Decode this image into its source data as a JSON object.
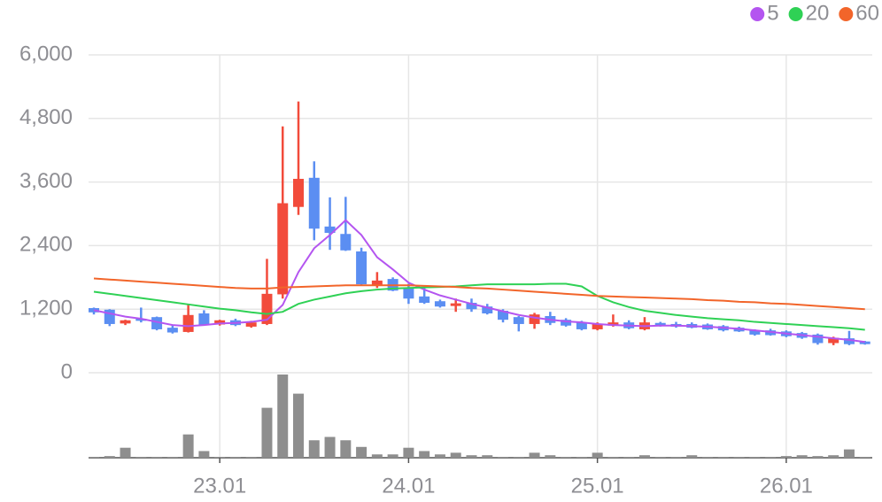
{
  "chart_data": {
    "type": "candlestick",
    "categories": [
      null,
      null,
      null,
      null,
      null,
      null,
      null,
      null,
      "23.01",
      null,
      null,
      null,
      null,
      null,
      null,
      null,
      null,
      null,
      null,
      null,
      "24.01",
      null,
      null,
      null,
      null,
      null,
      null,
      null,
      null,
      null,
      null,
      null,
      "25.01",
      null,
      null,
      null,
      null,
      null,
      null,
      null,
      null,
      null,
      null,
      null,
      "26.01",
      null,
      null,
      null,
      null,
      null
    ],
    "open": [
      1220,
      1190,
      930,
      1020,
      1050,
      850,
      770,
      1120,
      910,
      990,
      870,
      920,
      1480,
      3130,
      3680,
      2760,
      2620,
      2290,
      1650,
      1770,
      1590,
      1440,
      1350,
      1260,
      1320,
      1250,
      1170,
      1050,
      920,
      1070,
      1000,
      950,
      820,
      890,
      950,
      820,
      940,
      920,
      920,
      910,
      880,
      850,
      800,
      800,
      780,
      750,
      720,
      560,
      650,
      590
    ],
    "high": [
      1230,
      1200,
      1000,
      1230,
      1060,
      900,
      1300,
      1180,
      1000,
      1020,
      980,
      2150,
      4650,
      5120,
      3990,
      3310,
      3320,
      2360,
      1900,
      1800,
      1680,
      1600,
      1380,
      1400,
      1400,
      1300,
      1200,
      1070,
      1130,
      1150,
      1030,
      980,
      950,
      1100,
      990,
      1050,
      960,
      960,
      950,
      930,
      900,
      870,
      820,
      830,
      800,
      770,
      740,
      680,
      790,
      600
    ],
    "low": [
      1100,
      880,
      900,
      950,
      800,
      740,
      760,
      900,
      890,
      880,
      850,
      900,
      1400,
      2980,
      2500,
      2320,
      2300,
      1650,
      1600,
      1540,
      1300,
      1300,
      1230,
      1150,
      1150,
      1100,
      950,
      780,
      830,
      900,
      870,
      800,
      800,
      870,
      820,
      800,
      870,
      850,
      840,
      810,
      780,
      770,
      700,
      700,
      670,
      640,
      530,
      520,
      520,
      530
    ],
    "close": [
      1140,
      920,
      990,
      980,
      820,
      760,
      1090,
      910,
      990,
      900,
      950,
      1490,
      3200,
      3660,
      2720,
      2640,
      2310,
      1670,
      1740,
      1550,
      1400,
      1320,
      1250,
      1310,
      1200,
      1120,
      1000,
      920,
      1100,
      940,
      890,
      820,
      920,
      950,
      840,
      950,
      890,
      870,
      850,
      820,
      800,
      780,
      720,
      710,
      690,
      660,
      560,
      660,
      540,
      540
    ],
    "up_color": "#f24b3b",
    "down_color": "#5b8ef2",
    "lines": [
      {
        "name": "5",
        "color": "#b455f0",
        "values": [
          1180,
          1120,
          1060,
          1020,
          960,
          900,
          880,
          900,
          930,
          940,
          960,
          1000,
          1280,
          1900,
          2350,
          2600,
          2880,
          2600,
          2180,
          1950,
          1700,
          1570,
          1460,
          1380,
          1300,
          1230,
          1160,
          1090,
          1040,
          1000,
          970,
          950,
          920,
          900,
          890,
          880,
          890,
          890,
          880,
          870,
          850,
          830,
          800,
          770,
          740,
          710,
          680,
          650,
          620,
          580
        ]
      },
      {
        "name": "20",
        "color": "#2fd155",
        "values": [
          1530,
          1490,
          1450,
          1410,
          1370,
          1330,
          1290,
          1250,
          1210,
          1180,
          1140,
          1110,
          1150,
          1300,
          1380,
          1440,
          1500,
          1540,
          1570,
          1590,
          1600,
          1610,
          1620,
          1630,
          1650,
          1670,
          1670,
          1670,
          1670,
          1680,
          1680,
          1630,
          1450,
          1330,
          1240,
          1170,
          1130,
          1090,
          1060,
          1030,
          1010,
          990,
          960,
          940,
          920,
          900,
          880,
          860,
          840,
          810
        ]
      },
      {
        "name": "60",
        "color": "#f2652a",
        "values": [
          1780,
          1760,
          1740,
          1720,
          1700,
          1680,
          1660,
          1640,
          1620,
          1600,
          1590,
          1590,
          1610,
          1620,
          1630,
          1640,
          1650,
          1650,
          1650,
          1650,
          1650,
          1640,
          1630,
          1620,
          1600,
          1590,
          1570,
          1550,
          1530,
          1510,
          1490,
          1470,
          1450,
          1440,
          1430,
          1420,
          1410,
          1400,
          1390,
          1370,
          1360,
          1340,
          1330,
          1310,
          1300,
          1280,
          1260,
          1240,
          1220,
          1200
        ]
      }
    ],
    "volume": [
      1,
      2,
      12,
      1,
      1,
      1,
      28,
      8,
      1,
      1,
      1,
      60,
      100,
      77,
      21,
      25,
      21,
      13,
      4,
      4,
      12,
      8,
      4,
      6,
      3,
      3,
      1,
      1,
      6,
      3,
      1,
      1,
      6,
      1,
      1,
      3,
      1,
      1,
      3,
      1,
      1,
      1,
      1,
      1,
      2,
      3,
      2,
      3,
      10,
      1
    ],
    "volume_color": "#8e8e8e",
    "vlim": [
      0,
      100
    ],
    "ylim": [
      0,
      6000
    ],
    "yticks": [
      0,
      {
        "value": 1200,
        "label": "1,200"
      },
      {
        "value": 2400,
        "label": "2,400"
      },
      {
        "value": 3600,
        "label": "3,600"
      },
      {
        "value": 4800,
        "label": "4,800"
      },
      {
        "value": 6000,
        "label": "6,000"
      }
    ],
    "grid": true
  }
}
